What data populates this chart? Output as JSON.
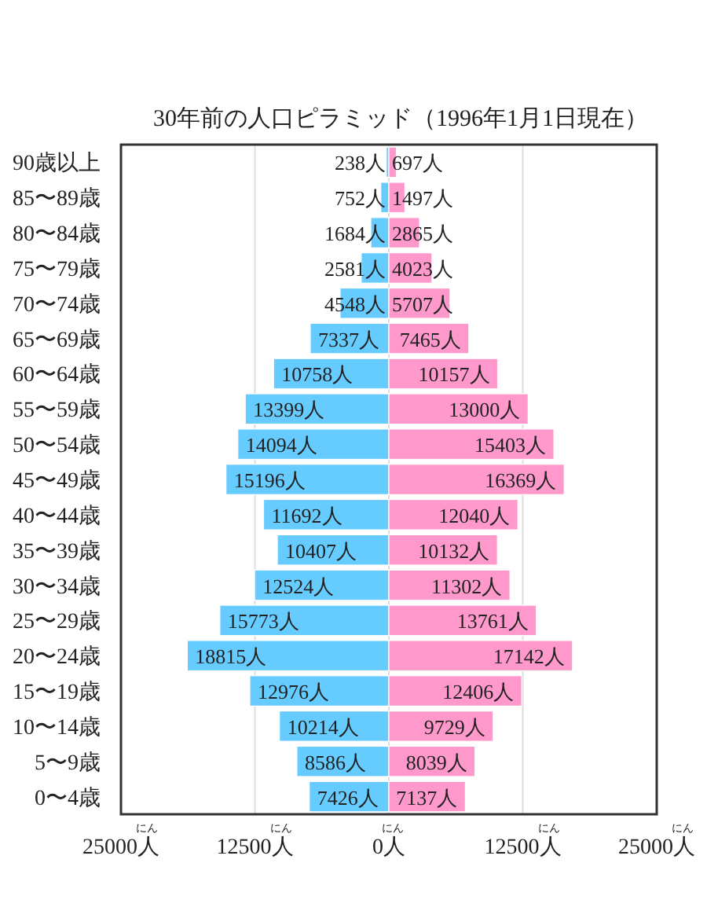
{
  "chart_data": {
    "type": "bar",
    "orientation": "horizontal",
    "title": "30年前の人口ピラミッド（1996年1月1日現在）",
    "categories": [
      "90歳以上",
      "85〜89歳",
      "80〜84歳",
      "75〜79歳",
      "70〜74歳",
      "65〜69歳",
      "60〜64歳",
      "55〜59歳",
      "50〜54歳",
      "45〜49歳",
      "40〜44歳",
      "35〜39歳",
      "30〜34歳",
      "25〜29歳",
      "20〜24歳",
      "15〜19歳",
      "10〜14歳",
      "5〜9歳",
      "0〜4歳"
    ],
    "series": [
      {
        "color": "#66ccff",
        "base": [
          -238,
          -752,
          -1684,
          -2581,
          -4548,
          -7337,
          -10758,
          -13399,
          -14094,
          -15196,
          -11692,
          -10407,
          -12524,
          -15773,
          -18815,
          -12976,
          -10214,
          -8586,
          -7426
        ],
        "values": [
          238,
          752,
          1684,
          2581,
          4548,
          7337,
          10758,
          13399,
          14094,
          15196,
          11692,
          10407,
          12524,
          15773,
          18815,
          12976,
          10214,
          8586,
          7426
        ],
        "value_labels": [
          "238人",
          "752人",
          "1684人",
          "2581人",
          "4548人",
          "7337人",
          "10758人",
          "13399人",
          "14094人",
          "15196人",
          "11692人",
          "10407人",
          "12524人",
          "15773人",
          "18815人",
          "12976人",
          "10214人",
          "8586人",
          "7426人"
        ]
      },
      {
        "color": "#ff99cc",
        "values": [
          697,
          1497,
          2865,
          4023,
          5707,
          7465,
          10157,
          13000,
          15403,
          16369,
          12040,
          10132,
          11302,
          13761,
          17142,
          12406,
          9729,
          8039,
          7137
        ],
        "value_labels": [
          "697人",
          "1497人",
          "2865人",
          "4023人",
          "5707人",
          "7465人",
          "10157人",
          "13000人",
          "15403人",
          "16369人",
          "12040人",
          "10132人",
          "11302人",
          "13761人",
          "17142人",
          "12406人",
          "9729人",
          "8039人",
          "7137人"
        ]
      }
    ],
    "xlim": [
      -25000,
      25000
    ],
    "xticks": [
      {
        "value": -25000,
        "label": "25000人"
      },
      {
        "value": -12500,
        "label": "12500人"
      },
      {
        "value": 0,
        "label": "0人"
      },
      {
        "value": 12500,
        "label": "12500人"
      },
      {
        "value": 25000,
        "label": "25000人"
      }
    ],
    "annotations": [
      "にん",
      "にん",
      "にん",
      "にん",
      "にん"
    ],
    "grid": "x"
  }
}
